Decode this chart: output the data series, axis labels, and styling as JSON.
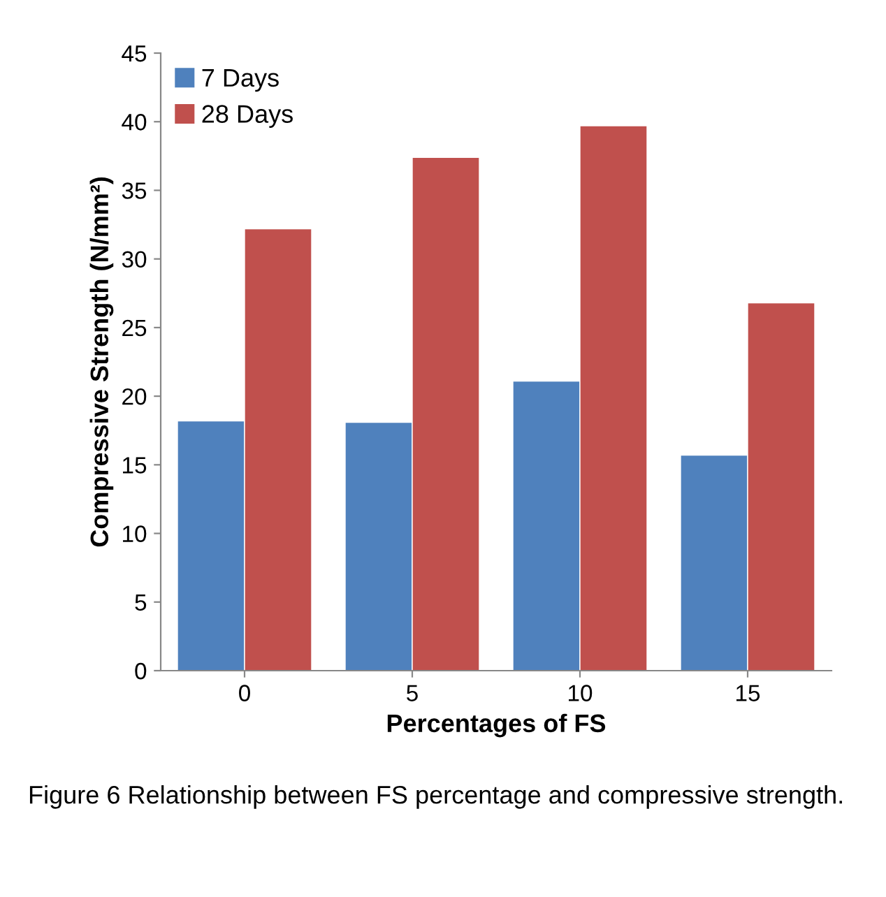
{
  "chart_data": {
    "type": "bar",
    "xlabel": "Percentages of FS",
    "ylabel": "Compressive Strength (N/mm²)",
    "categories": [
      "0",
      "5",
      "10",
      "15"
    ],
    "series": [
      {
        "name": "7 Days",
        "color": "#4f81bd",
        "values": [
          18.2,
          18.1,
          21.1,
          15.7
        ]
      },
      {
        "name": "28 Days",
        "color": "#c0504d",
        "values": [
          32.2,
          37.4,
          39.7,
          26.8
        ]
      }
    ],
    "ylim": [
      0,
      45
    ],
    "yticks": [
      0,
      5,
      10,
      15,
      20,
      25,
      30,
      35,
      40,
      45
    ],
    "grid": false,
    "legend": "top left",
    "annotations": [
      "Figure 6 Relationship between FS percentage and compressive strength."
    ]
  }
}
